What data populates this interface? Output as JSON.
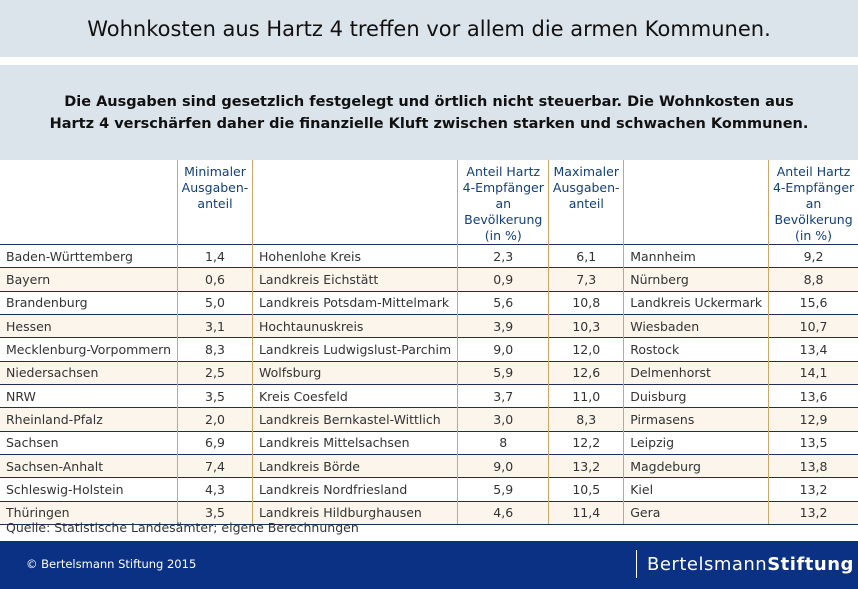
{
  "title": "Wohnkosten aus Hartz 4 treffen vor allem die armen Kommunen.",
  "subtitle": "Die Ausgaben sind gesetzlich festgelegt und örtlich nicht steuerbar. Die Wohnkosten aus Hartz 4 verschärfen daher die finanzielle Kluft zwischen starken und schwachen Kommunen.",
  "headers": [
    "",
    "Minimaler Ausgaben-anteil",
    "",
    "Anteil Hartz 4-Empfänger an Bevölkerung (in %)",
    "Maximaler Ausgaben-anteil",
    "",
    "Anteil Hartz 4-Empfänger an Bevölkerung (in %)"
  ],
  "rows": [
    [
      "Baden-Württemberg",
      "1,4",
      "Hohenlohe Kreis",
      "2,3",
      "6,1",
      "Mannheim",
      "9,2"
    ],
    [
      "Bayern",
      "0,6",
      "Landkreis Eichstätt",
      "0,9",
      "7,3",
      "Nürnberg",
      "8,8"
    ],
    [
      "Brandenburg",
      "5,0",
      "Landkreis Potsdam-Mittelmark",
      "5,6",
      "10,8",
      "Landkreis Uckermark",
      "15,6"
    ],
    [
      "Hessen",
      "3,1",
      "Hochtaunuskreis",
      "3,9",
      "10,3",
      "Wiesbaden",
      "10,7"
    ],
    [
      "Mecklenburg-Vorpommern",
      "8,3",
      "Landkreis Ludwigslust-Parchim",
      "9,0",
      "12,0",
      "Rostock",
      "13,4"
    ],
    [
      "Niedersachsen",
      "2,5",
      "Wolfsburg",
      "5,9",
      "12,6",
      "Delmenhorst",
      "14,1"
    ],
    [
      "NRW",
      "3,5",
      "Kreis Coesfeld",
      "3,7",
      "11,0",
      "Duisburg",
      "13,6"
    ],
    [
      "Rheinland-Pfalz",
      "2,0",
      "Landkreis Bernkastel-Wittlich",
      "3,0",
      "8,3",
      "Pirmasens",
      "12,9"
    ],
    [
      "Sachsen",
      "6,9",
      "Landkreis Mittelsachsen",
      "8",
      "12,2",
      "Leipzig",
      "13,5"
    ],
    [
      "Sachsen-Anhalt",
      "7,4",
      "Landkreis Börde",
      "9,0",
      "13,2",
      "Magdeburg",
      "13,8"
    ],
    [
      "Schleswig-Holstein",
      "4,3",
      "Landkreis Nordfriesland",
      "5,9",
      "10,5",
      "Kiel",
      "13,2"
    ],
    [
      "Thüringen",
      "3,5",
      "Landkreis Hildburghausen",
      "4,6",
      "11,4",
      "Gera",
      "13,2"
    ]
  ],
  "source": "Quelle: Statistische Landesämter; eigene Berechnungen",
  "footer": {
    "copyright": "© Bertelsmann Stiftung 2015",
    "logo_light": "Bertelsmann",
    "logo_bold": "Stiftung"
  },
  "colors": {
    "header_band": "#dbe3eb",
    "footer": "#0a3184",
    "header_text": "#123f7a",
    "alt_row": "#fbf5ec"
  }
}
